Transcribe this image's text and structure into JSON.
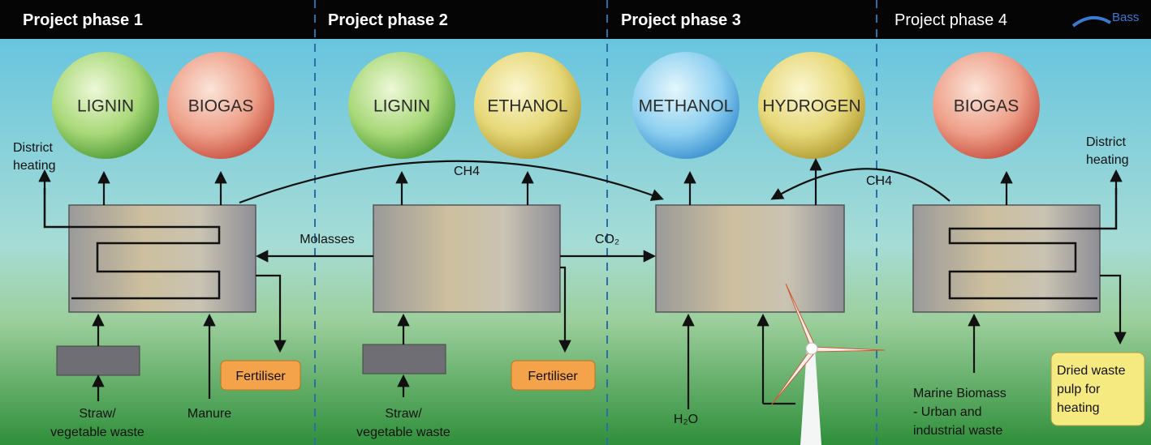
{
  "header": {
    "phases": [
      "Project phase 1",
      "Project phase 2",
      "Project phase 3",
      "Project phase 4"
    ],
    "logo": "Bass"
  },
  "phase1": {
    "products": [
      "LIGNIN",
      "BIOGAS"
    ],
    "district_heating": [
      "District",
      "heating"
    ],
    "inputs": [
      [
        "Straw/",
        "vegetable waste"
      ],
      [
        "Manure"
      ]
    ],
    "output": "Fertiliser"
  },
  "phase2": {
    "products": [
      "LIGNIN",
      "ETHANOL"
    ],
    "flows": {
      "ch4": "CH4",
      "molasses": "Molasses",
      "co2": "CO₂"
    },
    "input": [
      "Straw/",
      "vegetable waste"
    ],
    "output": "Fertiliser"
  },
  "phase3": {
    "products": [
      "METHANOL",
      "HYDROGEN"
    ],
    "input": "H₂O",
    "ch4": "CH4"
  },
  "phase4": {
    "products": [
      "BIOGAS"
    ],
    "district_heating": [
      "District",
      "heating"
    ],
    "input": [
      "Marine Biomass",
      "- Urban and",
      "industrial waste"
    ],
    "output": [
      "Dried waste",
      "pulp for",
      "heating"
    ]
  }
}
